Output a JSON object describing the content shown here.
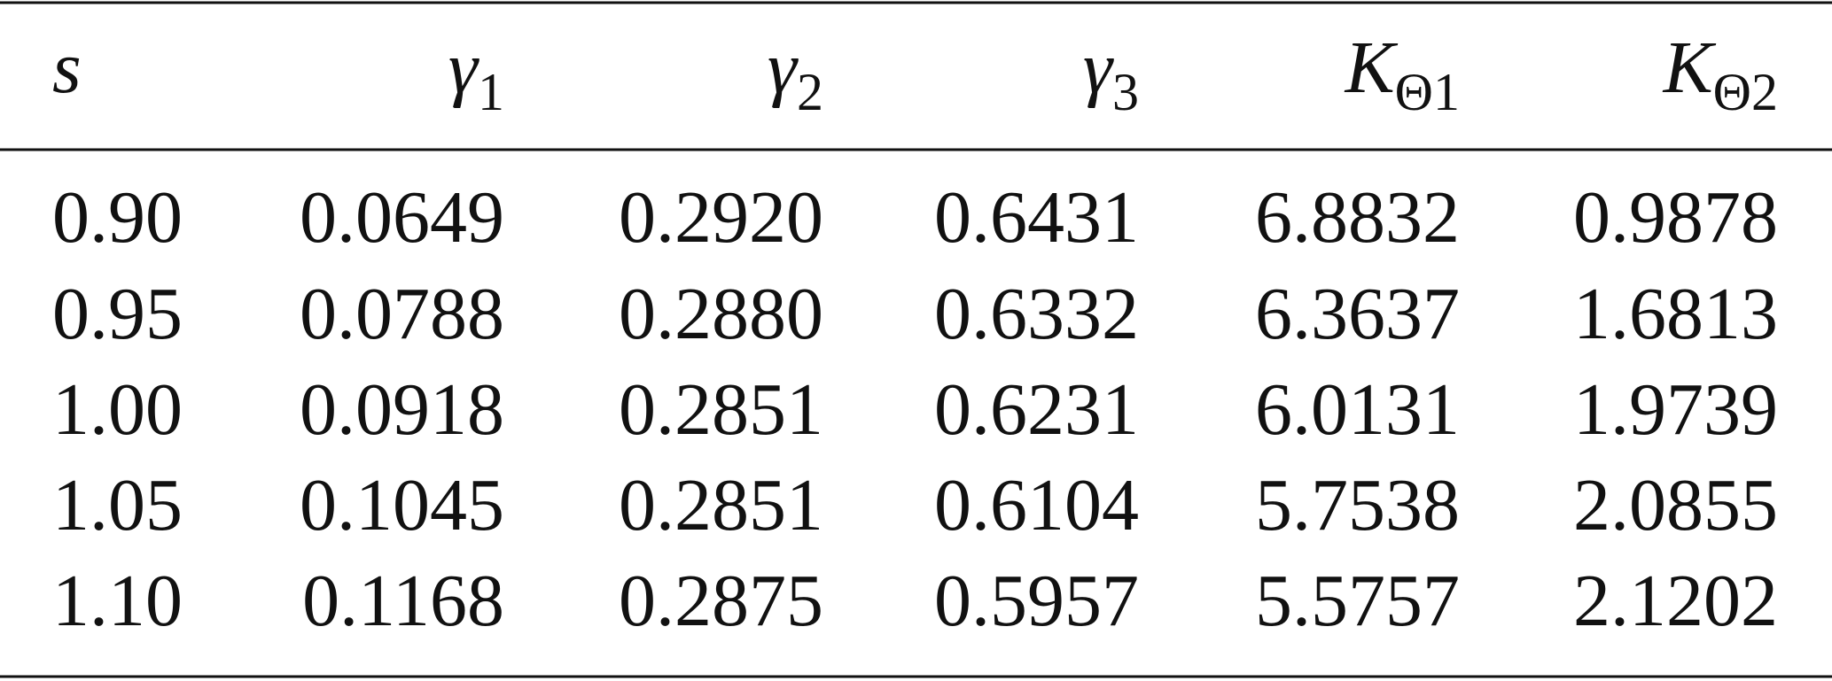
{
  "table": {
    "header": [
      {
        "symbol": "s"
      },
      {
        "symbol": "γ",
        "subscript": "1"
      },
      {
        "symbol": "γ",
        "subscript": "2"
      },
      {
        "symbol": "γ",
        "subscript": "3"
      },
      {
        "symbol": "K",
        "subscript": "Θ1"
      },
      {
        "symbol": "K",
        "subscript": "Θ2"
      }
    ],
    "rows": [
      [
        "0.90",
        "0.0649",
        "0.2920",
        "0.6431",
        "6.8832",
        "0.9878"
      ],
      [
        "0.95",
        "0.0788",
        "0.2880",
        "0.6332",
        "6.3637",
        "1.6813"
      ],
      [
        "1.00",
        "0.0918",
        "0.2851",
        "0.6231",
        "6.0131",
        "1.9739"
      ],
      [
        "1.05",
        "0.1045",
        "0.2851",
        "0.6104",
        "5.7538",
        "2.0855"
      ],
      [
        "1.10",
        "0.1168",
        "0.2875",
        "0.5957",
        "5.5757",
        "2.1202"
      ]
    ]
  }
}
